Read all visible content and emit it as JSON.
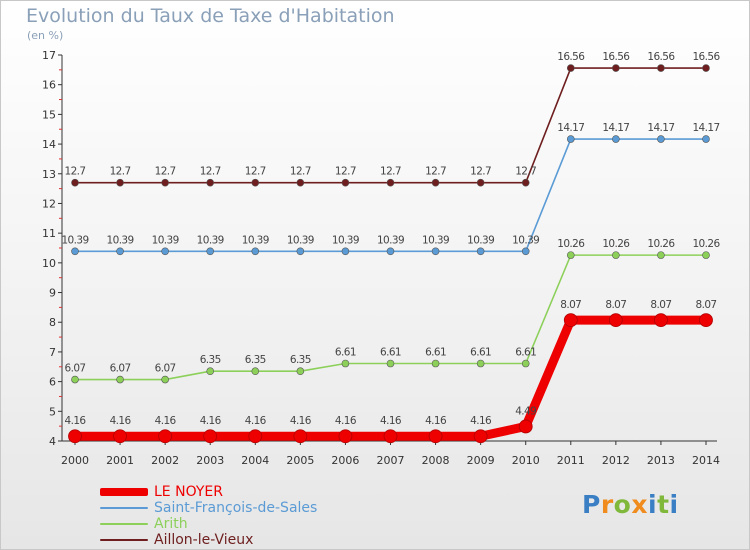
{
  "title": "Evolution du Taux de Taxe d'Habitation",
  "subtitle": "(en %)",
  "logo": {
    "text": "Proxiti",
    "letter_colors": [
      "#3a7fc4",
      "#f08c1e",
      "#7fb83a",
      "#f08c1e",
      "#3a7fc4",
      "#7fb83a",
      "#3a7fc4"
    ]
  },
  "chart_data": {
    "type": "line",
    "x": [
      "2000",
      "2001",
      "2002",
      "2003",
      "2004",
      "2005",
      "2006",
      "2007",
      "2008",
      "2009",
      "2010",
      "2011",
      "2012",
      "2013",
      "2014"
    ],
    "ylim": [
      4,
      17
    ],
    "yticks": [
      "4",
      "5",
      "6",
      "7",
      "8",
      "9",
      "10",
      "11",
      "12",
      "13",
      "14",
      "15",
      "16",
      "17"
    ],
    "grid": false,
    "legend_position": "bottom-left",
    "series": [
      {
        "name": "Aillon-le-Vieux",
        "color": "#6e1e1e",
        "values": [
          12.7,
          12.7,
          12.7,
          12.7,
          12.7,
          12.7,
          12.7,
          12.7,
          12.7,
          12.7,
          12.7,
          16.56,
          16.56,
          16.56,
          16.56
        ],
        "labels": [
          "12.7",
          "12.7",
          "12.7",
          "12.7",
          "12.7",
          "12.7",
          "12.7",
          "12.7",
          "12.7",
          "12.7",
          "12.7",
          "16.56",
          "16.56",
          "16.56",
          "16.56"
        ]
      },
      {
        "name": "Saint-François-de-Sales",
        "color": "#5b9bd5",
        "values": [
          10.39,
          10.39,
          10.39,
          10.39,
          10.39,
          10.39,
          10.39,
          10.39,
          10.39,
          10.39,
          10.39,
          14.17,
          14.17,
          14.17,
          14.17
        ],
        "labels": [
          "10.39",
          "10.39",
          "10.39",
          "10.39",
          "10.39",
          "10.39",
          "10.39",
          "10.39",
          "10.39",
          "10.39",
          "10.39",
          "14.17",
          "14.17",
          "14.17",
          "14.17"
        ]
      },
      {
        "name": "Arith",
        "color": "#8cd05a",
        "values": [
          6.07,
          6.07,
          6.07,
          6.35,
          6.35,
          6.35,
          6.61,
          6.61,
          6.61,
          6.61,
          6.61,
          10.26,
          10.26,
          10.26,
          10.26
        ],
        "labels": [
          "6.07",
          "6.07",
          "6.07",
          "6.35",
          "6.35",
          "6.35",
          "6.61",
          "6.61",
          "6.61",
          "6.61",
          "6.61",
          "10.26",
          "10.26",
          "10.26",
          "10.26"
        ]
      },
      {
        "name": "LE NOYER",
        "color": "#ee0000",
        "values": [
          4.16,
          4.16,
          4.16,
          4.16,
          4.16,
          4.16,
          4.16,
          4.16,
          4.16,
          4.16,
          4.49,
          8.07,
          8.07,
          8.07,
          8.07
        ],
        "labels": [
          "4.16",
          "4.16",
          "4.16",
          "4.16",
          "4.16",
          "4.16",
          "4.16",
          "4.16",
          "4.16",
          "4.16",
          "4.49",
          "8.07",
          "8.07",
          "8.07",
          "8.07"
        ]
      }
    ],
    "legend_order": [
      "LE NOYER",
      "Saint-François-de-Sales",
      "Arith",
      "Aillon-le-Vieux"
    ]
  }
}
